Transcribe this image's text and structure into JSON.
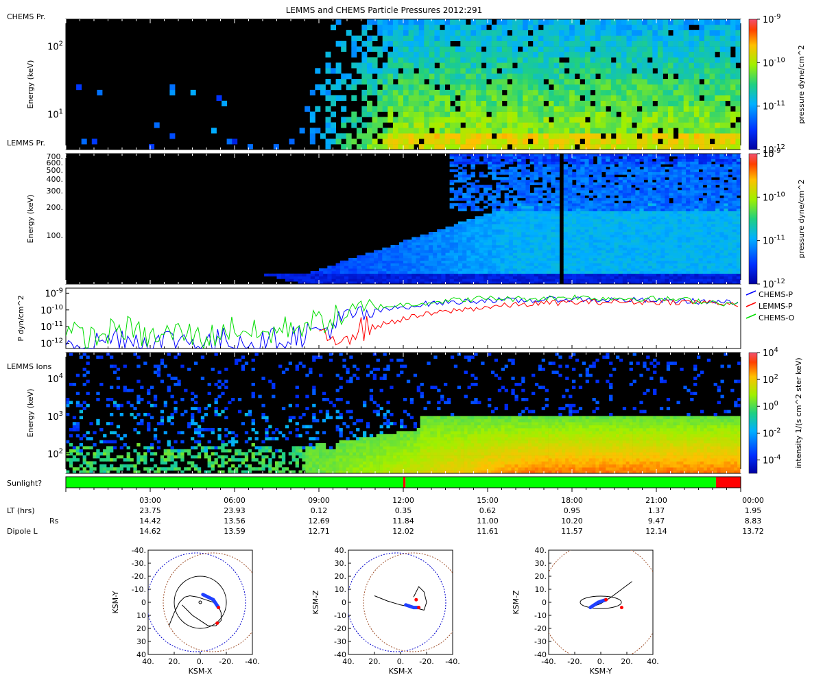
{
  "figure": {
    "title": "LEMMS and CHEMS Particle Pressures  2012:291"
  },
  "colors": {
    "chems_p": "#0000ff",
    "lemms_p": "#ff0000",
    "chems_o": "#00dd00",
    "sunlight_on": "#00ff00",
    "sunlight_off": "#ff0000",
    "background": "#000000"
  },
  "chart_data": [
    {
      "type": "heatmap",
      "id": "chems-pressure",
      "panel_label": "CHEMS Pr.",
      "ylabel": "Energy (keV)",
      "yscale": "log",
      "ylim": [
        3,
        250
      ],
      "yticks": [
        {
          "value": 10,
          "base": "10",
          "exp": "1"
        },
        {
          "value": 100,
          "base": "10",
          "exp": "2"
        }
      ],
      "colorbar": {
        "label": "pressure dyne/cm^2",
        "ticks": [
          {
            "value": 1e-09,
            "base": "10",
            "exp": "-9"
          },
          {
            "value": 1e-10,
            "base": "10",
            "exp": "-10"
          },
          {
            "value": 1e-11,
            "base": "10",
            "exp": "-11"
          },
          {
            "value": 1e-12,
            "base": "10",
            "exp": "-12"
          }
        ],
        "range": [
          1e-12,
          1e-09
        ]
      }
    },
    {
      "type": "heatmap",
      "id": "lemms-pressure",
      "panel_label": "LEMMS Pr.",
      "ylabel": "Energy (keV)",
      "yscale": "log",
      "ylim": [
        30,
        750
      ],
      "yticks": [
        {
          "value": 700,
          "label": "700."
        },
        {
          "value": 600,
          "label": "600."
        },
        {
          "value": 500,
          "label": "500."
        },
        {
          "value": 400,
          "label": "400."
        },
        {
          "value": 300,
          "label": "300."
        },
        {
          "value": 200,
          "label": "200."
        },
        {
          "value": 100,
          "label": "100."
        }
      ],
      "colorbar": {
        "label": "pressure dyne/cm^2",
        "ticks": [
          {
            "value": 1e-09,
            "base": "10",
            "exp": "-9"
          },
          {
            "value": 1e-10,
            "base": "10",
            "exp": "-10"
          },
          {
            "value": 1e-11,
            "base": "10",
            "exp": "-11"
          },
          {
            "value": 1e-12,
            "base": "10",
            "exp": "-12"
          }
        ],
        "range": [
          1e-12,
          1e-09
        ]
      }
    },
    {
      "type": "line",
      "id": "pressure-lines",
      "ylabel": "P dyn/cm^2",
      "yscale": "log",
      "ylim": [
        5e-13,
        2e-09
      ],
      "yticks": [
        {
          "value": 1e-09,
          "base": "10",
          "exp": "-9"
        },
        {
          "value": 1e-10,
          "base": "10",
          "exp": "-10"
        },
        {
          "value": 1e-11,
          "base": "10",
          "exp": "-11"
        },
        {
          "value": 1e-12,
          "base": "10",
          "exp": "-12"
        }
      ],
      "x_hours": [
        0,
        1,
        2,
        3,
        4,
        5,
        6,
        7,
        8,
        9,
        10,
        11,
        12,
        13,
        14,
        15,
        16,
        17,
        18,
        19,
        20,
        21,
        22,
        23,
        24
      ],
      "series": [
        {
          "name": "CHEMS-P",
          "key": "chems_p",
          "values": [
            2e-12,
            1e-12,
            3e-12,
            1e-12,
            2e-12,
            1e-12,
            2e-12,
            1e-12,
            3e-12,
            5e-12,
            3e-11,
            8e-11,
            1.5e-10,
            2.5e-10,
            3e-10,
            4e-10,
            3.5e-10,
            4e-10,
            4.5e-10,
            4e-10,
            4e-10,
            3.5e-10,
            3.5e-10,
            3e-10,
            2.5e-10
          ]
        },
        {
          "name": "LEMMS-P",
          "key": "lemms_p",
          "values": [
            null,
            null,
            null,
            null,
            null,
            null,
            null,
            null,
            null,
            1e-12,
            5e-12,
            1e-11,
            3e-11,
            6e-11,
            1e-10,
            1.5e-10,
            2e-10,
            2.5e-10,
            2.8e-10,
            3e-10,
            3e-10,
            3e-10,
            3e-10,
            2.8e-10,
            2.2e-10
          ]
        },
        {
          "name": "CHEMS-O",
          "key": "chems_o",
          "values": [
            4e-12,
            2e-12,
            1e-11,
            2e-12,
            5e-12,
            2e-12,
            1e-11,
            3e-12,
            1e-11,
            2e-11,
            5e-11,
            1.5e-10,
            2e-10,
            3e-10,
            4e-10,
            5e-10,
            4.5e-10,
            5e-10,
            6e-10,
            5e-10,
            5e-10,
            4.5e-10,
            4e-10,
            3e-10,
            2e-10
          ]
        }
      ]
    },
    {
      "type": "heatmap",
      "id": "lemms-ions",
      "panel_label": "LEMMS Ions",
      "ylabel": "Energy (keV)",
      "yscale": "log",
      "ylim": [
        30,
        50000
      ],
      "yticks": [
        {
          "value": 100,
          "base": "10",
          "exp": "2"
        },
        {
          "value": 1000,
          "base": "10",
          "exp": "3"
        },
        {
          "value": 10000,
          "base": "10",
          "exp": "4"
        }
      ],
      "colorbar": {
        "label": "intensity 1/(s cm^2 ster keV)",
        "ticks": [
          {
            "value": 10000.0,
            "base": "10",
            "exp": "4"
          },
          {
            "value": 100.0,
            "base": "10",
            "exp": "2"
          },
          {
            "value": 1,
            "base": "10",
            "exp": "0"
          },
          {
            "value": 0.01,
            "base": "10",
            "exp": "-2"
          },
          {
            "value": 0.0001,
            "base": "10",
            "exp": "-4"
          }
        ],
        "range": [
          1e-05,
          10000.0
        ]
      }
    },
    {
      "type": "bar",
      "id": "sunlight",
      "panel_label": "Sunlight?",
      "segments": [
        {
          "start_hour": 0,
          "end_hour": 12.0,
          "state": "sunlight_on"
        },
        {
          "start_hour": 12.0,
          "end_hour": 12.08,
          "state": "sunlight_off"
        },
        {
          "start_hour": 12.08,
          "end_hour": 23.12,
          "state": "sunlight_on"
        },
        {
          "start_hour": 23.12,
          "end_hour": 24,
          "state": "sunlight_off"
        }
      ]
    },
    {
      "type": "scatter",
      "id": "orbit-xy",
      "xlabel": "KSM-X",
      "ylabel": "KSM-Y",
      "xlim": [
        40,
        -40
      ],
      "ylim": [
        -40,
        40
      ],
      "xticks": [
        "40.",
        "20.",
        "0.",
        "-20.",
        "-40."
      ],
      "yticks": [
        "-40.",
        "-30.",
        "-20.",
        "-10.",
        "0",
        "10",
        "20",
        "30",
        "40"
      ],
      "orbit": [
        [
          24,
          18
        ],
        [
          20,
          8
        ],
        [
          16,
          0
        ],
        [
          12,
          -4
        ],
        [
          8,
          -5
        ],
        [
          2,
          -4
        ],
        [
          -4,
          -2
        ],
        [
          -10,
          0
        ],
        [
          -14,
          3
        ],
        [
          -16,
          8
        ],
        [
          -16,
          14
        ],
        [
          -12,
          18
        ],
        [
          -6,
          18
        ],
        [
          0,
          14
        ],
        [
          6,
          10
        ],
        [
          10,
          6
        ],
        [
          14,
          2
        ]
      ],
      "spacecraft_track": [
        [
          -2,
          -6
        ],
        [
          -10,
          -2
        ],
        [
          -14,
          4
        ]
      ],
      "markers": [
        [
          -14,
          4
        ],
        [
          -13,
          16
        ]
      ]
    },
    {
      "type": "scatter",
      "id": "orbit-xz",
      "xlabel": "KSM-X",
      "ylabel": "KSM-Z",
      "xlim": [
        40,
        -40
      ],
      "ylim": [
        -40,
        40
      ],
      "xticks": [
        "40.",
        "20.",
        "0.",
        "-20.",
        "-40."
      ],
      "yticks": [
        "40.",
        "30.",
        "20.",
        "10.",
        "0",
        "-10",
        "-20",
        "-30",
        "-40"
      ],
      "orbit": [
        [
          20,
          -5
        ],
        [
          10,
          -1
        ],
        [
          0,
          2
        ],
        [
          -10,
          4
        ],
        [
          -18,
          6
        ],
        [
          -20,
          0
        ],
        [
          -18,
          -8
        ],
        [
          -14,
          -12
        ],
        [
          -10,
          -4
        ]
      ],
      "spacecraft_track": [
        [
          -4,
          2
        ],
        [
          -10,
          4
        ],
        [
          -14,
          4
        ]
      ],
      "markers": [
        [
          -14,
          4
        ],
        [
          -12,
          -2
        ]
      ]
    },
    {
      "type": "scatter",
      "id": "orbit-yz",
      "xlabel": "KSM-Y",
      "ylabel": "KSM-Z",
      "xlim": [
        -40,
        40
      ],
      "ylim": [
        -40,
        40
      ],
      "xticks": [
        "-40.",
        "-20.",
        "0.",
        "20.",
        "40."
      ],
      "yticks": [
        "40.",
        "30.",
        "20.",
        "10.",
        "0",
        "-10",
        "-20",
        "-30",
        "-40"
      ],
      "orbit": [
        [
          -8,
          4
        ],
        [
          0,
          1
        ],
        [
          8,
          -4
        ],
        [
          16,
          -10
        ],
        [
          24,
          -16
        ]
      ],
      "spacecraft_track": [
        [
          -8,
          4
        ],
        [
          -2,
          0
        ],
        [
          4,
          -2
        ]
      ],
      "markers": [
        [
          16,
          4
        ],
        [
          4,
          -2
        ]
      ]
    }
  ],
  "time_axis": {
    "row_labels": [
      "LT (hrs)",
      "Rs",
      "Dipole L"
    ],
    "ticks": [
      {
        "hour": 3,
        "time": "03:00",
        "lt": "23.75",
        "rs": "14.42",
        "dipole": "14.62"
      },
      {
        "hour": 6,
        "time": "06:00",
        "lt": "23.93",
        "rs": "13.56",
        "dipole": "13.59"
      },
      {
        "hour": 9,
        "time": "09:00",
        "lt": "0.12",
        "rs": "12.69",
        "dipole": "12.71"
      },
      {
        "hour": 12,
        "time": "12:00",
        "lt": "0.35",
        "rs": "11.84",
        "dipole": "12.02"
      },
      {
        "hour": 15,
        "time": "15:00",
        "lt": "0.62",
        "rs": "11.00",
        "dipole": "11.61"
      },
      {
        "hour": 18,
        "time": "18:00",
        "lt": "0.95",
        "rs": "10.20",
        "dipole": "11.57"
      },
      {
        "hour": 21,
        "time": "21:00",
        "lt": "1.37",
        "rs": "9.47",
        "dipole": "12.14"
      },
      {
        "hour": 24,
        "time": "00:00",
        "lt": "1.95",
        "rs": "8.83",
        "dipole": "13.72"
      }
    ]
  }
}
